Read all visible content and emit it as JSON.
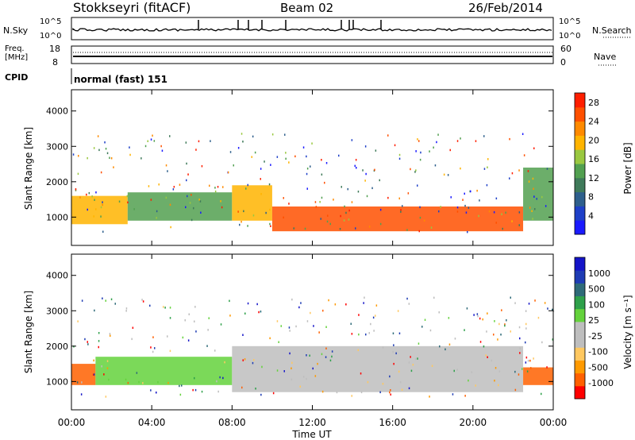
{
  "header": {
    "station": "Stokkseyri (fitACF)",
    "beam": "Beam 02",
    "date": "26/Feb/2014"
  },
  "panels": {
    "nsky": {
      "label": "N.Sky",
      "tick_top": "10^5",
      "tick_bottom": "10^0",
      "tick_top_right": "10^5",
      "tick_bottom_right": "10^0",
      "right_label": "N.Search"
    },
    "freq": {
      "label_line1": "Freq.",
      "label_line2": "[MHz]",
      "tick_top": "18",
      "tick_bottom": "8",
      "right_top": "60",
      "right_bottom": "0",
      "right_label": "Nave"
    },
    "cpid": {
      "label": "CPID",
      "value": "normal (fast) 151"
    }
  },
  "colors": {
    "power": [
      "#1a1aff",
      "#1e40c8",
      "#2e5f8c",
      "#3f7a5a",
      "#52a050",
      "#9ac840",
      "#ffb400",
      "#ff8a00",
      "#ff5000",
      "#ff1e00"
    ],
    "velocity": [
      "#ff0000",
      "#ff6000",
      "#ff9a00",
      "#ffc860",
      "#bebebe",
      "#bebebe",
      "#64d23c",
      "#2ea04a",
      "#2e6a78",
      "#1e3cb4",
      "#1414c8"
    ]
  },
  "chart_data": [
    {
      "type": "heatmap",
      "name": "power",
      "ylabel": "Slant Range [km]",
      "yticks": [
        "1000",
        "2000",
        "3000",
        "4000"
      ],
      "ylim": [
        200,
        4600
      ],
      "xlim_hours": [
        0,
        24
      ],
      "colorbar": {
        "label": "Power [dB]",
        "ticks": [
          "4",
          "8",
          "12",
          "16",
          "20",
          "24",
          "28"
        ],
        "range": [
          0,
          30
        ]
      },
      "echo_bands": [
        {
          "t0": 0.0,
          "t1": 2.8,
          "r0": 800,
          "r1": 1600,
          "level": 18
        },
        {
          "t0": 2.8,
          "t1": 8.0,
          "r0": 900,
          "r1": 1700,
          "level": 14
        },
        {
          "t0": 8.0,
          "t1": 10.0,
          "r0": 900,
          "r1": 1900,
          "level": 20
        },
        {
          "t0": 10.0,
          "t1": 22.5,
          "r0": 600,
          "r1": 1300,
          "level": 24
        },
        {
          "t0": 22.5,
          "t1": 24.0,
          "r0": 900,
          "r1": 2400,
          "level": 12
        }
      ]
    },
    {
      "type": "heatmap",
      "name": "velocity",
      "ylabel": "Slant Range [km]",
      "yticks": [
        "1000",
        "2000",
        "3000",
        "4000"
      ],
      "ylim": [
        200,
        4600
      ],
      "xlim_hours": [
        0,
        24
      ],
      "colorbar": {
        "label": "Velocity [m s⁻¹]",
        "ticks": [
          "1000",
          "500",
          "100",
          "25",
          "-25",
          "-100",
          "-500",
          "-1000"
        ]
      },
      "echo_bands": [
        {
          "t0": 0.0,
          "t1": 1.2,
          "r0": 900,
          "r1": 1500,
          "vel": -500
        },
        {
          "t0": 1.2,
          "t1": 8.0,
          "r0": 900,
          "r1": 1700,
          "vel": 100
        },
        {
          "t0": 8.0,
          "t1": 22.5,
          "r0": 700,
          "r1": 2000,
          "vel": 0
        },
        {
          "t0": 22.5,
          "t1": 24.0,
          "r0": 900,
          "r1": 1400,
          "vel": -500
        }
      ]
    }
  ],
  "xaxis": {
    "label": "Time UT",
    "ticks": [
      "00:00",
      "04:00",
      "08:00",
      "12:00",
      "16:00",
      "20:00",
      "00:00"
    ]
  }
}
